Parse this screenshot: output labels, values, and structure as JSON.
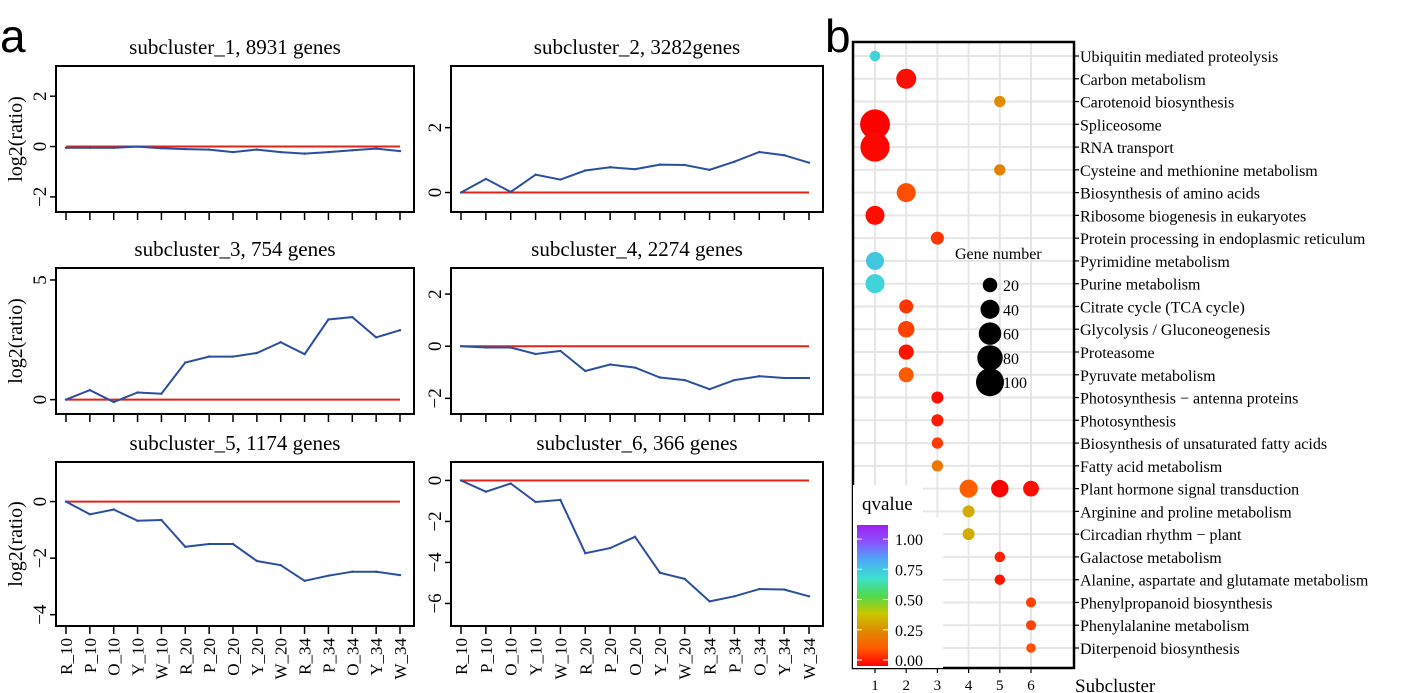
{
  "panel_labels": {
    "a": "a",
    "b": "b"
  },
  "chart_data": [
    {
      "type": "line",
      "panel": "a",
      "title": "subcluster_1, 8931 genes",
      "ylabel": "log2(ratio)",
      "ylim": [
        -2.6,
        3.2
      ],
      "yticks": [
        -2,
        0,
        2
      ],
      "baseline": 0,
      "show_x_labels": false,
      "categories": [
        "R_10",
        "P_10",
        "O_10",
        "Y_10",
        "W_10",
        "R_20",
        "P_20",
        "O_20",
        "Y_20",
        "W_20",
        "R_34",
        "P_34",
        "O_34",
        "Y_34",
        "W_34"
      ],
      "values": [
        -0.05,
        -0.05,
        -0.05,
        0.0,
        -0.07,
        -0.1,
        -0.12,
        -0.22,
        -0.12,
        -0.22,
        -0.28,
        -0.22,
        -0.15,
        -0.08,
        -0.18
      ]
    },
    {
      "type": "line",
      "panel": "a",
      "title": "subcluster_2, 3282genes",
      "ylabel": "",
      "ylim": [
        -0.6,
        3.9
      ],
      "yticks": [
        0,
        2
      ],
      "baseline": 0,
      "show_x_labels": false,
      "categories": [
        "R_10",
        "P_10",
        "O_10",
        "Y_10",
        "W_10",
        "R_20",
        "P_20",
        "O_20",
        "Y_20",
        "W_20",
        "R_34",
        "P_34",
        "O_34",
        "Y_34",
        "W_34"
      ],
      "values": [
        0.0,
        0.42,
        0.02,
        0.55,
        0.4,
        0.68,
        0.78,
        0.72,
        0.86,
        0.85,
        0.7,
        0.95,
        1.25,
        1.15,
        0.92
      ]
    },
    {
      "type": "line",
      "panel": "a",
      "title": "subcluster_3, 754 genes",
      "ylabel": "log2(ratio)",
      "ylim": [
        -0.6,
        5.5
      ],
      "yticks": [
        0,
        5
      ],
      "baseline": 0,
      "show_x_labels": false,
      "categories": [
        "R_10",
        "P_10",
        "O_10",
        "Y_10",
        "W_10",
        "R_20",
        "P_20",
        "O_20",
        "Y_20",
        "W_20",
        "R_34",
        "P_34",
        "O_34",
        "Y_34",
        "W_34"
      ],
      "values": [
        0.0,
        0.4,
        -0.1,
        0.3,
        0.25,
        1.55,
        1.8,
        1.8,
        1.95,
        2.4,
        1.9,
        3.35,
        3.45,
        2.6,
        2.9
      ]
    },
    {
      "type": "line",
      "panel": "a",
      "title": "subcluster_4, 2274 genes",
      "ylabel": "",
      "ylim": [
        -2.6,
        3.0
      ],
      "yticks": [
        -2,
        0,
        2
      ],
      "baseline": 0,
      "show_x_labels": false,
      "categories": [
        "R_10",
        "P_10",
        "O_10",
        "Y_10",
        "W_10",
        "R_20",
        "P_20",
        "O_20",
        "Y_20",
        "W_20",
        "R_34",
        "P_34",
        "O_34",
        "Y_34",
        "W_34"
      ],
      "values": [
        0.0,
        -0.05,
        -0.05,
        -0.3,
        -0.18,
        -0.95,
        -0.7,
        -0.82,
        -1.2,
        -1.3,
        -1.65,
        -1.3,
        -1.15,
        -1.22,
        -1.22
      ]
    },
    {
      "type": "line",
      "panel": "a",
      "title": "subcluster_5, 1174 genes",
      "ylabel": "log2(ratio)",
      "ylim": [
        -4.4,
        1.4
      ],
      "yticks": [
        -4,
        -2,
        0
      ],
      "baseline": 0,
      "show_x_labels": true,
      "categories": [
        "R_10",
        "P_10",
        "O_10",
        "Y_10",
        "W_10",
        "R_20",
        "P_20",
        "O_20",
        "Y_20",
        "W_20",
        "R_34",
        "P_34",
        "O_34",
        "Y_34",
        "W_34"
      ],
      "values": [
        0.0,
        -0.45,
        -0.28,
        -0.68,
        -0.65,
        -1.6,
        -1.5,
        -1.5,
        -2.1,
        -2.25,
        -2.8,
        -2.62,
        -2.48,
        -2.48,
        -2.6
      ]
    },
    {
      "type": "line",
      "panel": "a",
      "title": "subcluster_6, 366 genes",
      "ylabel": "",
      "ylim": [
        -7.1,
        0.9
      ],
      "yticks": [
        -6,
        -4,
        -2,
        0
      ],
      "baseline": 0,
      "show_x_labels": true,
      "categories": [
        "R_10",
        "P_10",
        "O_10",
        "Y_10",
        "W_10",
        "R_20",
        "P_20",
        "O_20",
        "Y_20",
        "W_20",
        "R_34",
        "P_34",
        "O_34",
        "Y_34",
        "W_34"
      ],
      "values": [
        0.0,
        -0.55,
        -0.15,
        -1.05,
        -0.95,
        -3.55,
        -3.3,
        -2.75,
        -4.5,
        -4.8,
        -5.9,
        -5.65,
        -5.3,
        -5.32,
        -5.65
      ]
    },
    {
      "type": "scatter",
      "panel": "b",
      "xlabel": "Subcluster",
      "xticks": [
        1,
        2,
        3,
        4,
        5,
        6
      ],
      "pathways": [
        "Ubiquitin mediated proteolysis",
        "Carbon metabolism",
        "Carotenoid biosynthesis",
        "Spliceosome",
        "RNA transport",
        "Cysteine and methionine metabolism",
        "Biosynthesis of amino acids",
        "Ribosome biogenesis in eukaryotes",
        "Protein processing in endoplasmic reticulum",
        "Pyrimidine metabolism",
        "Purine metabolism",
        "Citrate cycle (TCA cycle)",
        "Glycolysis / Gluconeogenesis",
        "Proteasome",
        "Pyruvate metabolism",
        "Photosynthesis − antenna proteins",
        "Photosynthesis",
        "Biosynthesis of unsaturated fatty acids",
        "Fatty acid metabolism",
        "Plant hormone signal transduction",
        "Arginine and proline metabolism",
        "Circadian rhythm − plant",
        "Galactose metabolism",
        "Alanine, aspartate and glutamate metabolism",
        "Phenylpropanoid biosynthesis",
        "Phenylalanine metabolism",
        "Diterpenoid biosynthesis"
      ],
      "points": [
        {
          "cluster": 1,
          "pathway": 0,
          "gene_number": 8,
          "qvalue": 0.72
        },
        {
          "cluster": 2,
          "pathway": 1,
          "gene_number": 45,
          "qvalue": 0.02
        },
        {
          "cluster": 5,
          "pathway": 2,
          "gene_number": 10,
          "qvalue": 0.28
        },
        {
          "cluster": 1,
          "pathway": 3,
          "gene_number": 115,
          "qvalue": 0.0
        },
        {
          "cluster": 1,
          "pathway": 4,
          "gene_number": 110,
          "qvalue": 0.01
        },
        {
          "cluster": 5,
          "pathway": 5,
          "gene_number": 10,
          "qvalue": 0.25
        },
        {
          "cluster": 2,
          "pathway": 6,
          "gene_number": 40,
          "qvalue": 0.12
        },
        {
          "cluster": 1,
          "pathway": 7,
          "gene_number": 40,
          "qvalue": 0.02
        },
        {
          "cluster": 3,
          "pathway": 8,
          "gene_number": 15,
          "qvalue": 0.08
        },
        {
          "cluster": 1,
          "pathway": 9,
          "gene_number": 35,
          "qvalue": 0.75
        },
        {
          "cluster": 1,
          "pathway": 10,
          "gene_number": 40,
          "qvalue": 0.72
        },
        {
          "cluster": 2,
          "pathway": 11,
          "gene_number": 18,
          "qvalue": 0.08
        },
        {
          "cluster": 2,
          "pathway": 12,
          "gene_number": 28,
          "qvalue": 0.1
        },
        {
          "cluster": 2,
          "pathway": 13,
          "gene_number": 22,
          "qvalue": 0.03
        },
        {
          "cluster": 2,
          "pathway": 14,
          "gene_number": 22,
          "qvalue": 0.14
        },
        {
          "cluster": 3,
          "pathway": 15,
          "gene_number": 12,
          "qvalue": 0.02
        },
        {
          "cluster": 3,
          "pathway": 16,
          "gene_number": 12,
          "qvalue": 0.04
        },
        {
          "cluster": 3,
          "pathway": 17,
          "gene_number": 10,
          "qvalue": 0.09
        },
        {
          "cluster": 3,
          "pathway": 18,
          "gene_number": 10,
          "qvalue": 0.22
        },
        {
          "cluster": 4,
          "pathway": 19,
          "gene_number": 35,
          "qvalue": 0.15
        },
        {
          "cluster": 5,
          "pathway": 19,
          "gene_number": 32,
          "qvalue": 0.0
        },
        {
          "cluster": 6,
          "pathway": 19,
          "gene_number": 25,
          "qvalue": 0.02
        },
        {
          "cluster": 4,
          "pathway": 20,
          "gene_number": 12,
          "qvalue": 0.35
        },
        {
          "cluster": 4,
          "pathway": 21,
          "gene_number": 12,
          "qvalue": 0.35
        },
        {
          "cluster": 5,
          "pathway": 22,
          "gene_number": 8,
          "qvalue": 0.05
        },
        {
          "cluster": 5,
          "pathway": 23,
          "gene_number": 8,
          "qvalue": 0.03
        },
        {
          "cluster": 6,
          "pathway": 24,
          "gene_number": 7,
          "qvalue": 0.1
        },
        {
          "cluster": 6,
          "pathway": 25,
          "gene_number": 7,
          "qvalue": 0.1
        },
        {
          "cluster": 6,
          "pathway": 26,
          "gene_number": 6,
          "qvalue": 0.12
        }
      ],
      "size_legend": {
        "title": "Gene number",
        "values": [
          20,
          40,
          60,
          80,
          100
        ],
        "labels": [
          "20",
          "40",
          "60",
          "80",
          "100"
        ]
      },
      "color_legend": {
        "title": "qvalue",
        "ticks": [
          1.0,
          0.75,
          0.5,
          0.25,
          0.0
        ],
        "labels": [
          "1.00",
          "0.75",
          "0.50",
          "0.25",
          "0.00"
        ],
        "stops": [
          "#ff0000",
          "#ff5a00",
          "#e08a00",
          "#c8c800",
          "#4fd94f",
          "#3de0d0",
          "#4aaaf5",
          "#8855ff",
          "#a020f0"
        ]
      }
    }
  ]
}
